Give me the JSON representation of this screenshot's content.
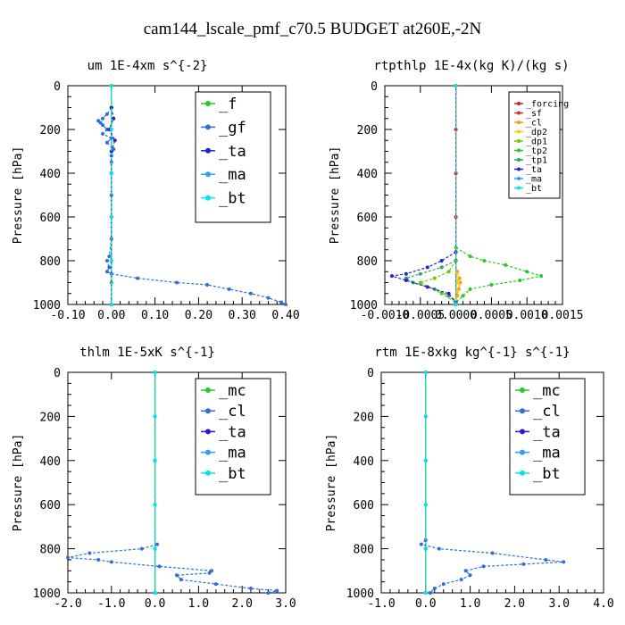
{
  "title": "cam144_lscale_pmf_c70.5  BUDGET at260E,-2N",
  "chart_data": [
    {
      "type": "line",
      "title": "um  1E-4xm s^{-2}",
      "xlabel": "",
      "ylabel": "Pressure [hPa]",
      "xlim": [
        -0.1,
        0.4
      ],
      "ylim": [
        1000,
        0
      ],
      "xticks": [
        "-0.10",
        "0.00",
        "0.10",
        "0.20",
        "0.30",
        "0.40"
      ],
      "xtick_values": [
        -0.1,
        0.0,
        0.1,
        0.2,
        0.3,
        0.4
      ],
      "yticks": [
        "0",
        "200",
        "400",
        "600",
        "800",
        "1000"
      ],
      "ytick_values": [
        0,
        200,
        400,
        600,
        800,
        1000
      ],
      "legend_size": "large",
      "series": [
        {
          "name": "_f",
          "color": "#22cc22",
          "y": [
            0,
            100,
            200,
            300,
            400,
            500,
            600,
            700,
            800,
            900,
            1000
          ],
          "x": [
            0,
            0,
            0,
            0,
            0,
            0,
            0,
            0,
            0,
            0,
            0
          ]
        },
        {
          "name": "_gf",
          "color": "#2f6fd8",
          "y": [
            100,
            130,
            150,
            160,
            170,
            180,
            200,
            220,
            240,
            260,
            290,
            320,
            350,
            400,
            500,
            600,
            700,
            780,
            800,
            830,
            850,
            860,
            880,
            900,
            910,
            930,
            950,
            970,
            990,
            1000
          ],
          "x": [
            0.0,
            -0.01,
            -0.02,
            -0.03,
            -0.025,
            -0.02,
            -0.01,
            -0.02,
            0.0,
            -0.01,
            0.005,
            0.0,
            0.0,
            0.0,
            0.0,
            0.0,
            0.0,
            -0.005,
            -0.01,
            -0.005,
            -0.01,
            0.0,
            0.06,
            0.15,
            0.22,
            0.27,
            0.32,
            0.36,
            0.39,
            0.4
          ]
        },
        {
          "name": "_ta",
          "color": "#2222cc",
          "y": [
            100,
            150,
            200,
            250,
            300,
            400,
            1000
          ],
          "x": [
            0.0,
            0.005,
            -0.005,
            0.008,
            0.0,
            0.0,
            0.0
          ]
        },
        {
          "name": "_ma",
          "color": "#3399ff",
          "y": [
            0,
            1000
          ],
          "x": [
            0,
            0
          ]
        },
        {
          "name": "_bt",
          "color": "#00e5ee",
          "y": [
            0,
            200,
            400,
            600,
            800,
            1000
          ],
          "x": [
            0,
            0,
            0,
            0,
            0,
            0
          ]
        }
      ]
    },
    {
      "type": "line",
      "title": "rtpthlp  1E-4x(kg K)/(kg s)",
      "xlabel": "",
      "ylabel": "Pressure [hPa]",
      "xlim": [
        -0.001,
        0.0015
      ],
      "ylim": [
        1000,
        0
      ],
      "xticks": [
        "-0.0010",
        "-0.0005",
        "0.0000",
        "0.0005",
        "0.0010",
        "0.0015"
      ],
      "xtick_values": [
        -0.001,
        -0.0005,
        0.0,
        0.0005,
        0.001,
        0.0015
      ],
      "yticks": [
        "0",
        "200",
        "400",
        "600",
        "800",
        "1000"
      ],
      "ytick_values": [
        0,
        200,
        400,
        600,
        800,
        1000
      ],
      "legend_size": "small",
      "series": [
        {
          "name": "_forcing",
          "color": "#cc2222",
          "y": [
            0,
            200,
            400,
            600,
            800,
            1000
          ],
          "x": [
            0,
            0,
            0,
            0,
            0,
            0
          ]
        },
        {
          "name": "_sf",
          "color": "#cc3322",
          "y": [
            0,
            200,
            400,
            600,
            800,
            1000
          ],
          "x": [
            0,
            0,
            0,
            0,
            0,
            0
          ]
        },
        {
          "name": "_cl",
          "color": "#ff9900",
          "y": [
            850,
            880,
            900,
            930,
            960,
            990
          ],
          "x": [
            2e-05,
            5e-05,
            6e-05,
            4e-05,
            2e-05,
            0.0
          ]
        },
        {
          "name": "_dp2",
          "color": "#ffcc00",
          "y": [
            860,
            900,
            940,
            980
          ],
          "x": [
            1e-05,
            3e-05,
            2e-05,
            0.0
          ]
        },
        {
          "name": "_dp1",
          "color": "#66cc00",
          "y": [
            800,
            850,
            880,
            900,
            950,
            990
          ],
          "x": [
            0.0,
            -0.0001,
            -0.0003,
            -0.0005,
            -0.0002,
            0.0
          ]
        },
        {
          "name": "_tp2",
          "color": "#22cc22",
          "y": [
            740,
            780,
            800,
            820,
            850,
            870,
            890,
            910,
            930,
            960,
            990
          ],
          "x": [
            0.0,
            0.0002,
            0.0004,
            0.0007,
            0.001,
            0.0012,
            0.0009,
            0.0005,
            0.0002,
            0.0001,
            0.0
          ]
        },
        {
          "name": "_tp1",
          "color": "#22aa66",
          "y": [
            800,
            830,
            860,
            880,
            900,
            930,
            960,
            990
          ],
          "x": [
            0.0,
            -0.0002,
            -0.0005,
            -0.0007,
            -0.0006,
            -0.0003,
            -0.0001,
            0.0
          ]
        },
        {
          "name": "_ta",
          "color": "#2222cc",
          "y": [
            760,
            800,
            830,
            860,
            870,
            890,
            920,
            950,
            990
          ],
          "x": [
            0.0,
            -0.0002,
            -0.0004,
            -0.0007,
            -0.0009,
            -0.0007,
            -0.0004,
            -0.0001,
            0.0
          ]
        },
        {
          "name": "_ma",
          "color": "#3399ff",
          "y": [
            0,
            1000
          ],
          "x": [
            0,
            0
          ]
        },
        {
          "name": "_bt",
          "color": "#00e5ee",
          "y": [
            0,
            1000
          ],
          "x": [
            0,
            0
          ]
        }
      ]
    },
    {
      "type": "line",
      "title": "thlm  1E-5xK s^{-1}",
      "xlabel": "",
      "ylabel": "Pressure [hPa]",
      "xlim": [
        -2.0,
        3.0
      ],
      "ylim": [
        1000,
        0
      ],
      "xticks": [
        "-2.0",
        "-1.0",
        "0.0",
        "1.0",
        "2.0",
        "3.0"
      ],
      "xtick_values": [
        -2.0,
        -1.0,
        0.0,
        1.0,
        2.0,
        3.0
      ],
      "yticks": [
        "0",
        "200",
        "400",
        "600",
        "800",
        "1000"
      ],
      "ytick_values": [
        0,
        200,
        400,
        600,
        800,
        1000
      ],
      "legend_size": "large",
      "series": [
        {
          "name": "_mc",
          "color": "#22cc22",
          "y": [
            0,
            200,
            400,
            600,
            800,
            1000
          ],
          "x": [
            0,
            0,
            0,
            0,
            0,
            0
          ]
        },
        {
          "name": "_cl",
          "color": "#2f6fd8",
          "y": [
            780,
            800,
            820,
            840,
            850,
            860,
            880,
            900,
            910,
            920,
            940,
            960,
            980,
            990,
            1000
          ],
          "x": [
            0.05,
            -0.3,
            -1.5,
            -2.0,
            -1.3,
            -1.0,
            0.1,
            1.3,
            1.25,
            0.5,
            0.6,
            1.4,
            2.2,
            2.8,
            2.6
          ]
        },
        {
          "name": "_ta",
          "color": "#2222cc",
          "y": [
            0,
            400,
            800,
            1000
          ],
          "x": [
            0,
            0,
            0,
            0
          ]
        },
        {
          "name": "_ma",
          "color": "#3399ff",
          "y": [
            0,
            1000
          ],
          "x": [
            0,
            0
          ]
        },
        {
          "name": "_bt",
          "color": "#00e5ee",
          "y": [
            0,
            200,
            400,
            600,
            800,
            1000
          ],
          "x": [
            0,
            0,
            0,
            0,
            0,
            0
          ]
        }
      ]
    },
    {
      "type": "line",
      "title": "rtm  1E-8xkg kg^{-1} s^{-1}",
      "xlabel": "",
      "ylabel": "Pressure [hPa]",
      "xlim": [
        -1.0,
        4.0
      ],
      "ylim": [
        1000,
        0
      ],
      "xticks": [
        "-1.0",
        "0.0",
        "1.0",
        "2.0",
        "3.0",
        "4.0"
      ],
      "xtick_values": [
        -1.0,
        0.0,
        1.0,
        2.0,
        3.0,
        4.0
      ],
      "yticks": [
        "0",
        "200",
        "400",
        "600",
        "800",
        "1000"
      ],
      "ytick_values": [
        0,
        200,
        400,
        600,
        800,
        1000
      ],
      "legend_size": "large",
      "series": [
        {
          "name": "_mc",
          "color": "#22cc22",
          "y": [
            0,
            200,
            400,
            600,
            800,
            1000
          ],
          "x": [
            0,
            0,
            0,
            0,
            0,
            0
          ]
        },
        {
          "name": "_cl",
          "color": "#2f6fd8",
          "y": [
            760,
            780,
            800,
            820,
            850,
            860,
            870,
            880,
            900,
            920,
            940,
            960,
            980,
            1000
          ],
          "x": [
            0.0,
            -0.1,
            0.3,
            1.5,
            2.7,
            3.1,
            2.2,
            1.3,
            0.9,
            1.0,
            0.8,
            0.4,
            0.2,
            0.1
          ]
        },
        {
          "name": "_ta",
          "color": "#2222cc",
          "y": [
            0,
            400,
            800,
            1000
          ],
          "x": [
            0,
            0,
            0,
            0
          ]
        },
        {
          "name": "_ma",
          "color": "#3399ff",
          "y": [
            0,
            1000
          ],
          "x": [
            0,
            0
          ]
        },
        {
          "name": "_bt",
          "color": "#00e5ee",
          "y": [
            0,
            200,
            400,
            600,
            800,
            1000
          ],
          "x": [
            0,
            0,
            0,
            0,
            0,
            0
          ]
        }
      ]
    }
  ]
}
